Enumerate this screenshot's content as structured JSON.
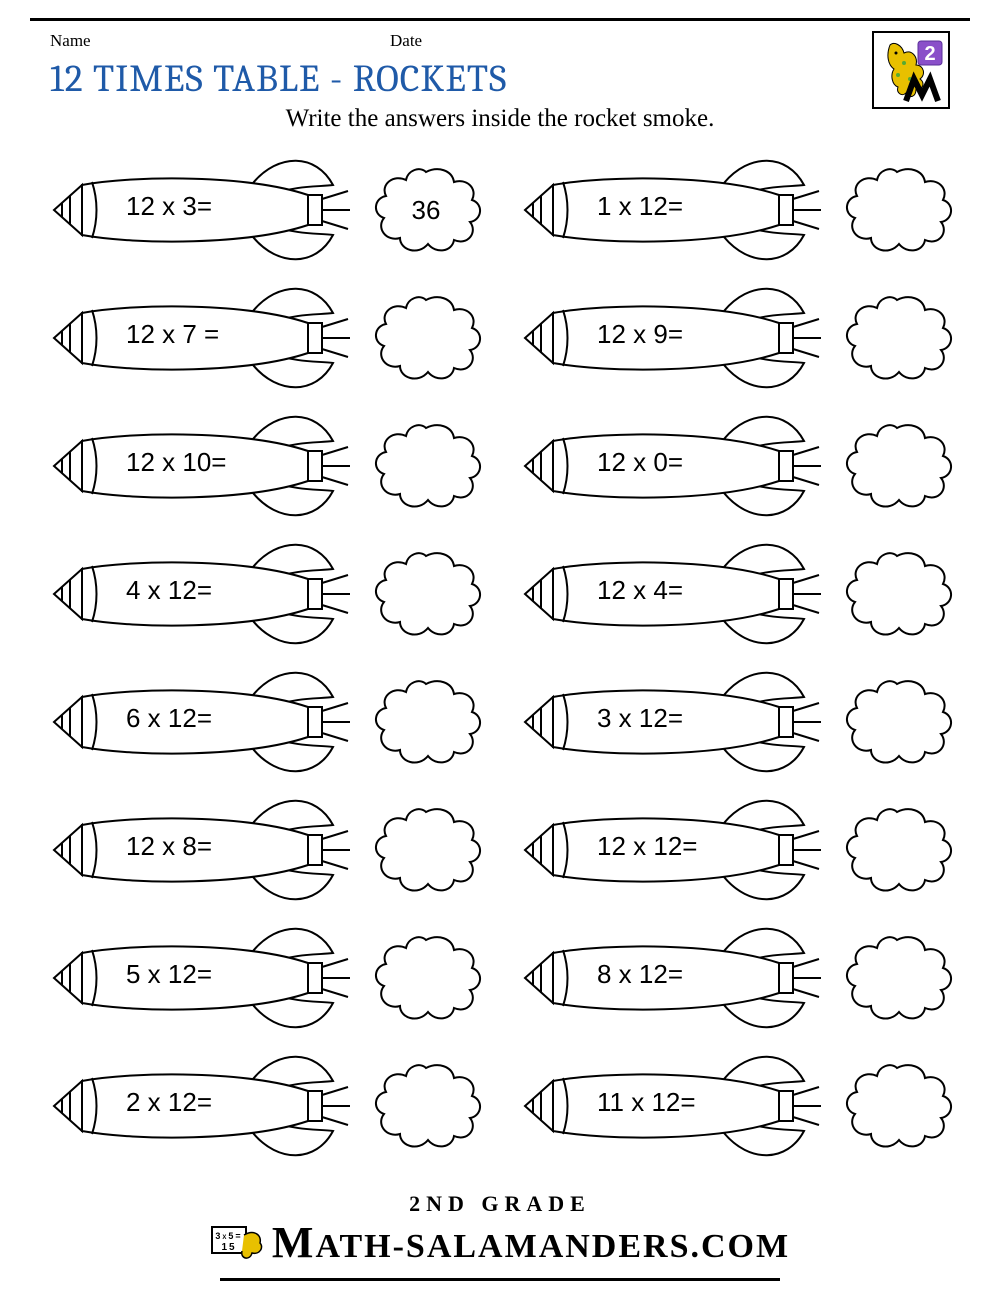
{
  "header": {
    "name_label": "Name",
    "date_label": "Date",
    "title": "12 TIMES TABLE - ROCKETS",
    "instruction": "Write the answers inside the rocket smoke.",
    "grade_badge": "2"
  },
  "style": {
    "title_color": "#1f5aa8",
    "title_fontsize": 38,
    "instruction_fontsize": 25,
    "problem_fontsize": 26,
    "stroke_color": "#000000",
    "stroke_width": 2,
    "background": "#ffffff",
    "rocket_width": 310,
    "rocket_height": 110,
    "cloud_width": 120,
    "cloud_height": 100,
    "columns": 2,
    "rows": 8
  },
  "problems": {
    "left": [
      {
        "q": "12 x 3=",
        "a": "36"
      },
      {
        "q": "12 x 7 =",
        "a": ""
      },
      {
        "q": "12 x 10=",
        "a": ""
      },
      {
        "q": "4 x 12=",
        "a": ""
      },
      {
        "q": "6 x 12=",
        "a": ""
      },
      {
        "q": "12 x 8=",
        "a": ""
      },
      {
        "q": "5 x 12=",
        "a": ""
      },
      {
        "q": "2 x 12=",
        "a": ""
      }
    ],
    "right": [
      {
        "q": "1 x 12=",
        "a": ""
      },
      {
        "q": "12 x 9=",
        "a": ""
      },
      {
        "q": "12 x 0=",
        "a": ""
      },
      {
        "q": "12 x 4=",
        "a": ""
      },
      {
        "q": "3 x 12=",
        "a": ""
      },
      {
        "q": "12 x 12=",
        "a": ""
      },
      {
        "q": "8 x 12=",
        "a": ""
      },
      {
        "q": "11 x 12=",
        "a": ""
      }
    ]
  },
  "footer": {
    "line1": "2ND GRADE",
    "line2_prefix": "M",
    "line2_rest": "ATH-SALAMANDERS.COM"
  }
}
